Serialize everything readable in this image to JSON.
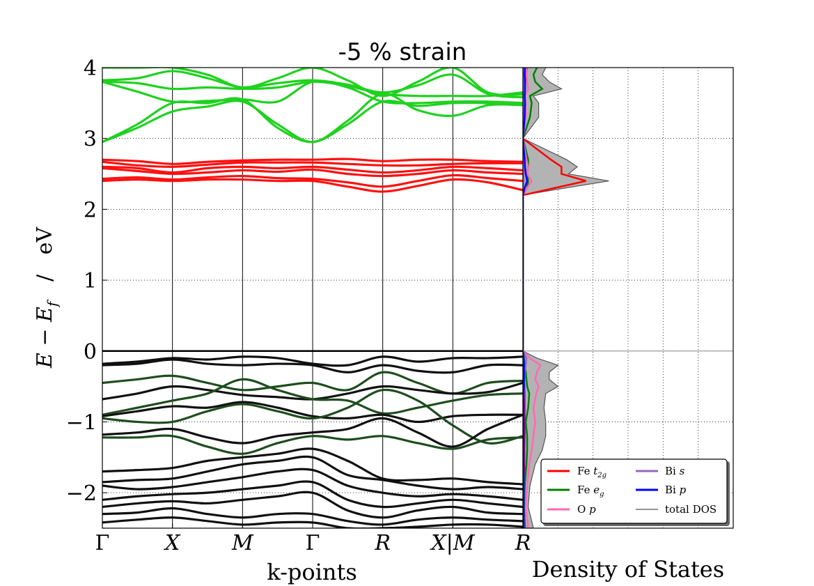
{
  "title": "-5 % strain",
  "colors": {
    "fe_t2g": "#ff0000",
    "fe_eg": "#008000",
    "o_p": "#ff69b4",
    "bi_s": "#9467bd",
    "bi_p": "#0000ff",
    "total": "#555555",
    "total_fill": "#b3b3b3",
    "conduction_eg_band": "#1ed21e",
    "conduction_t2g_band": "#ff1010",
    "valence_band": "#101010",
    "valence_mixed_band": "#1e4d1e"
  },
  "chart_data": [
    {
      "type": "line",
      "name": "band-structure",
      "xlabel": "k-points",
      "ylabel": "E − E_f   /  eV",
      "ylim": [
        -2.5,
        4
      ],
      "yticks": [
        -2,
        -1,
        0,
        1,
        2,
        3,
        4
      ],
      "ytick_labels": [
        "−2",
        "−1",
        "0",
        "1",
        "2",
        "3",
        "4"
      ],
      "k_labels": [
        "Γ",
        "X",
        "M",
        "Γ",
        "R",
        "X|M",
        "R"
      ],
      "k_positions": [
        0,
        1,
        2,
        3,
        4,
        5,
        6
      ],
      "fermi_level": 0,
      "x": [
        0,
        0.5,
        1,
        1.5,
        2,
        2.5,
        3,
        3.5,
        4,
        4.5,
        5,
        5.5,
        6
      ],
      "bands": [
        {
          "group": "eg",
          "y": [
            4.0,
            4.0,
            4.0,
            3.9,
            3.72,
            3.85,
            4.0,
            3.82,
            3.6,
            3.8,
            4.0,
            3.65,
            3.62
          ]
        },
        {
          "group": "eg",
          "y": [
            3.82,
            3.85,
            3.95,
            3.85,
            3.72,
            3.78,
            3.82,
            3.76,
            3.65,
            3.75,
            3.9,
            3.63,
            3.58
          ]
        },
        {
          "group": "eg",
          "y": [
            3.8,
            3.78,
            3.7,
            3.72,
            3.7,
            3.72,
            3.8,
            3.74,
            3.63,
            3.6,
            3.6,
            3.6,
            3.65
          ]
        },
        {
          "group": "eg",
          "y": [
            3.8,
            3.66,
            3.52,
            3.53,
            3.55,
            3.52,
            3.8,
            3.72,
            3.52,
            3.5,
            3.52,
            3.52,
            3.5
          ]
        },
        {
          "group": "eg",
          "y": [
            2.95,
            3.2,
            3.5,
            3.5,
            3.55,
            3.15,
            2.95,
            3.2,
            3.52,
            3.46,
            3.5,
            3.5,
            3.48
          ]
        },
        {
          "group": "eg",
          "y": [
            2.95,
            3.15,
            3.38,
            3.45,
            3.52,
            3.2,
            2.95,
            3.25,
            3.63,
            3.4,
            3.32,
            3.47,
            3.47
          ]
        },
        {
          "group": "t2g",
          "y": [
            2.7,
            2.68,
            2.64,
            2.67,
            2.69,
            2.7,
            2.7,
            2.71,
            2.68,
            2.7,
            2.7,
            2.68,
            2.67
          ]
        },
        {
          "group": "t2g",
          "y": [
            2.67,
            2.62,
            2.6,
            2.63,
            2.66,
            2.66,
            2.66,
            2.64,
            2.62,
            2.62,
            2.64,
            2.65,
            2.65
          ]
        },
        {
          "group": "t2g",
          "y": [
            2.6,
            2.58,
            2.52,
            2.58,
            2.6,
            2.58,
            2.6,
            2.56,
            2.52,
            2.55,
            2.6,
            2.58,
            2.55
          ]
        },
        {
          "group": "t2g",
          "y": [
            2.58,
            2.54,
            2.5,
            2.52,
            2.55,
            2.53,
            2.56,
            2.5,
            2.47,
            2.5,
            2.55,
            2.52,
            2.5
          ]
        },
        {
          "group": "t2g",
          "y": [
            2.43,
            2.45,
            2.42,
            2.45,
            2.47,
            2.44,
            2.43,
            2.38,
            2.32,
            2.4,
            2.48,
            2.44,
            2.4
          ]
        },
        {
          "group": "t2g",
          "y": [
            2.4,
            2.42,
            2.4,
            2.42,
            2.42,
            2.4,
            2.4,
            2.32,
            2.25,
            2.33,
            2.42,
            2.38,
            2.27
          ]
        },
        {
          "group": "val",
          "y": [
            -0.18,
            -0.15,
            -0.1,
            -0.12,
            -0.08,
            -0.1,
            -0.18,
            -0.2,
            -0.08,
            -0.15,
            -0.1,
            -0.1,
            -0.08
          ]
        },
        {
          "group": "val",
          "y": [
            -0.2,
            -0.18,
            -0.12,
            -0.18,
            -0.2,
            -0.18,
            -0.2,
            -0.3,
            -0.2,
            -0.28,
            -0.3,
            -0.2,
            -0.2
          ]
        },
        {
          "group": "mix",
          "y": [
            -0.45,
            -0.4,
            -0.35,
            -0.45,
            -0.55,
            -0.5,
            -0.45,
            -0.55,
            -0.3,
            -0.45,
            -0.6,
            -0.45,
            -0.42
          ]
        },
        {
          "group": "val",
          "y": [
            -0.68,
            -0.6,
            -0.5,
            -0.55,
            -0.62,
            -0.65,
            -0.68,
            -0.6,
            -0.5,
            -0.55,
            -0.6,
            -0.58,
            -0.45
          ]
        },
        {
          "group": "mix",
          "y": [
            -0.9,
            -0.8,
            -0.7,
            -0.6,
            -0.4,
            -0.55,
            -0.68,
            -0.7,
            -0.88,
            -0.8,
            -0.7,
            -0.62,
            -0.6
          ]
        },
        {
          "group": "val",
          "y": [
            -0.92,
            -0.85,
            -0.78,
            -0.8,
            -0.72,
            -0.8,
            -0.92,
            -0.95,
            -0.9,
            -1.0,
            -0.92,
            -0.9,
            -0.9
          ]
        },
        {
          "group": "mix",
          "y": [
            -0.95,
            -1.0,
            -1.0,
            -0.85,
            -0.75,
            -0.85,
            -0.95,
            -0.8,
            -0.55,
            -0.7,
            -1.05,
            -1.3,
            -1.2
          ]
        },
        {
          "group": "val",
          "y": [
            -1.18,
            -1.15,
            -1.1,
            -1.22,
            -1.3,
            -1.2,
            -1.15,
            -1.1,
            -0.95,
            -1.15,
            -1.35,
            -1.1,
            -0.9
          ]
        },
        {
          "group": "mix",
          "y": [
            -1.22,
            -1.22,
            -1.2,
            -1.35,
            -1.45,
            -1.3,
            -1.2,
            -1.25,
            -1.2,
            -1.3,
            -1.38,
            -1.25,
            -1.22
          ]
        },
        {
          "group": "val",
          "y": [
            -1.7,
            -1.68,
            -1.65,
            -1.55,
            -1.5,
            -1.45,
            -1.38,
            -1.55,
            -1.8,
            -1.82,
            -1.8,
            -1.85,
            -1.88
          ]
        },
        {
          "group": "val",
          "y": [
            -1.85,
            -1.82,
            -1.8,
            -1.7,
            -1.6,
            -1.55,
            -1.5,
            -1.75,
            -1.82,
            -1.9,
            -1.95,
            -1.92,
            -1.95
          ]
        },
        {
          "group": "val",
          "y": [
            -1.9,
            -1.95,
            -1.92,
            -1.85,
            -1.78,
            -1.7,
            -1.68,
            -1.9,
            -2.0,
            -2.05,
            -2.02,
            -2.05,
            -2.1
          ]
        },
        {
          "group": "val",
          "y": [
            -2.1,
            -2.05,
            -2.02,
            -2.0,
            -1.95,
            -1.9,
            -1.85,
            -2.1,
            -2.2,
            -2.15,
            -2.1,
            -2.15,
            -2.2
          ]
        },
        {
          "group": "val",
          "y": [
            -2.2,
            -2.15,
            -2.12,
            -2.15,
            -2.1,
            -2.05,
            -2.0,
            -2.25,
            -2.35,
            -2.25,
            -2.2,
            -2.28,
            -2.3
          ]
        },
        {
          "group": "val",
          "y": [
            -2.3,
            -2.28,
            -2.22,
            -2.3,
            -2.35,
            -2.3,
            -2.3,
            -2.4,
            -2.45,
            -2.38,
            -2.35,
            -2.38,
            -2.4
          ]
        },
        {
          "group": "val",
          "y": [
            -2.42,
            -2.38,
            -2.35,
            -2.4,
            -2.45,
            -2.42,
            -2.42,
            -2.5,
            -2.5,
            -2.48,
            -2.45,
            -2.45,
            -2.48
          ]
        }
      ]
    },
    {
      "type": "area",
      "name": "density-of-states",
      "xlabel": "Density of States",
      "ylim": [
        -2.5,
        4
      ],
      "grid": true,
      "legend_position": "bottom-right",
      "legend": [
        "Fe $t_{2g}$",
        "Fe $e_g$",
        "O $p$",
        "Bi $s$",
        "Bi $p$",
        "total DOS"
      ],
      "energy": [
        -2.5,
        -2.2,
        -1.9,
        -1.6,
        -1.4,
        -1.2,
        -1.0,
        -0.8,
        -0.6,
        -0.5,
        -0.4,
        -0.3,
        -0.2,
        -0.1,
        0.0,
        2.2,
        2.3,
        2.4,
        2.5,
        2.6,
        2.7,
        3.0,
        3.3,
        3.5,
        3.6,
        3.7,
        3.8,
        3.9,
        4.0
      ],
      "series": [
        {
          "name": "total DOS",
          "values": [
            0.3,
            0.15,
            0.2,
            0.35,
            0.55,
            0.65,
            0.65,
            0.6,
            0.65,
            1.0,
            0.75,
            0.75,
            1.0,
            0.4,
            0.0,
            0.0,
            1.2,
            2.45,
            1.3,
            1.55,
            1.25,
            0.0,
            0.45,
            0.45,
            0.3,
            1.1,
            0.75,
            0.55,
            0.65
          ]
        },
        {
          "name": "Fe $t_{2g}$",
          "values": [
            0.06,
            0.03,
            0.05,
            0.04,
            0.04,
            0.05,
            0.05,
            0.05,
            0.05,
            0.04,
            0.03,
            0.03,
            0.03,
            0.02,
            0.0,
            0.0,
            0.9,
            1.8,
            1.1,
            1.1,
            0.8,
            0.0,
            0.04,
            0.05,
            0.04,
            0.05,
            0.06,
            0.08,
            0.12
          ]
        },
        {
          "name": "Fe $e_g$",
          "values": [
            0.05,
            0.03,
            0.05,
            0.1,
            0.12,
            0.12,
            0.08,
            0.15,
            0.18,
            0.12,
            0.1,
            0.08,
            0.05,
            0.03,
            0.0,
            0.0,
            0.12,
            0.15,
            0.12,
            0.15,
            0.15,
            0.0,
            0.2,
            0.25,
            0.2,
            0.55,
            0.35,
            0.3,
            0.4
          ]
        },
        {
          "name": "O $p$",
          "values": [
            0.15,
            0.08,
            0.12,
            0.18,
            0.25,
            0.3,
            0.35,
            0.3,
            0.38,
            0.45,
            0.35,
            0.4,
            0.5,
            0.2,
            0.0,
            0.0,
            0.12,
            0.25,
            0.12,
            0.15,
            0.1,
            0.0,
            0.08,
            0.08,
            0.06,
            0.15,
            0.12,
            0.1,
            0.1
          ]
        },
        {
          "name": "Bi $s$",
          "values": [
            0.03,
            0.02,
            0.02,
            0.02,
            0.02,
            0.02,
            0.02,
            0.02,
            0.03,
            0.04,
            0.04,
            0.05,
            0.08,
            0.1,
            0.0,
            0.0,
            0.02,
            0.02,
            0.02,
            0.02,
            0.02,
            0.0,
            0.02,
            0.02,
            0.02,
            0.02,
            0.02,
            0.02,
            0.02
          ]
        },
        {
          "name": "Bi $p$",
          "values": [
            0.02,
            0.02,
            0.02,
            0.02,
            0.02,
            0.02,
            0.02,
            0.02,
            0.02,
            0.03,
            0.03,
            0.03,
            0.03,
            0.02,
            0.0,
            0.0,
            0.05,
            0.12,
            0.08,
            0.06,
            0.05,
            0.0,
            0.05,
            0.06,
            0.05,
            0.06,
            0.06,
            0.05,
            0.06
          ]
        }
      ]
    }
  ]
}
